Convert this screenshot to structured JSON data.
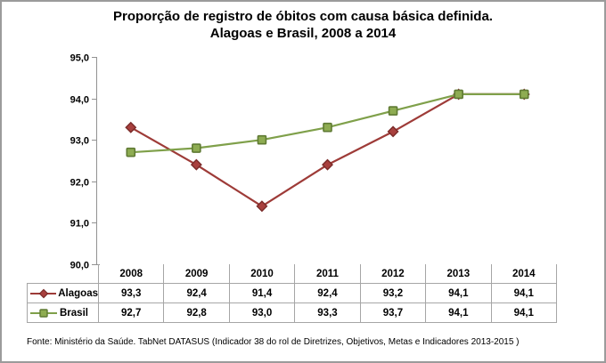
{
  "title": {
    "line1": "Proporção de registro de óbitos com causa básica definida.",
    "line2": "Alagoas e Brasil, 2008 a 2014"
  },
  "footer": {
    "source": "Fonte: Ministério da Saúde. TabNet DATASUS (Indicador 38 do rol de Diretrizes, Objetivos, Metas e Indicadores 2013-2015 )"
  },
  "colors": {
    "frame_border": "#9B9B9B",
    "axis": "#929292",
    "table_border": "#A6A6A6",
    "text": "#000000",
    "alagoas_line": "#9E3B38",
    "alagoas_marker_fill": "#A8403E",
    "alagoas_marker_stroke": "#7A2B29",
    "brasil_line": "#7FA04A",
    "brasil_marker_fill": "#8EAC52",
    "brasil_marker_stroke": "#5F7A33"
  },
  "chart_data": {
    "type": "line",
    "title": "Proporção de registro de óbitos com causa básica definida. Alagoas e Brasil, 2008 a 2014",
    "categories": [
      "2008",
      "2009",
      "2010",
      "2011",
      "2012",
      "2013",
      "2014"
    ],
    "series": [
      {
        "name": "Alagoas",
        "values": [
          93.3,
          92.4,
          91.4,
          92.4,
          93.2,
          94.1,
          94.1
        ],
        "display_values": [
          "93,3",
          "92,4",
          "91,4",
          "92,4",
          "93,2",
          "94,1",
          "94,1"
        ],
        "marker": "diamond",
        "line_color": "#9E3B38",
        "marker_fill": "#A8403E",
        "marker_stroke": "#7A2B29"
      },
      {
        "name": "Brasil",
        "values": [
          92.7,
          92.8,
          93.0,
          93.3,
          93.7,
          94.1,
          94.1
        ],
        "display_values": [
          "92,7",
          "92,8",
          "93,0",
          "93,3",
          "93,7",
          "94,1",
          "94,1"
        ],
        "marker": "square",
        "line_color": "#7FA04A",
        "marker_fill": "#8EAC52",
        "marker_stroke": "#5F7A33"
      }
    ],
    "xlabel": "",
    "ylabel": "",
    "ylim": [
      90,
      95
    ],
    "ytick_step": 1,
    "yticks": [
      "90,0",
      "91,0",
      "92,0",
      "93,0",
      "94,0",
      "95,0"
    ],
    "grid": false,
    "legend_position": "table-left",
    "decimal_separator": ","
  }
}
